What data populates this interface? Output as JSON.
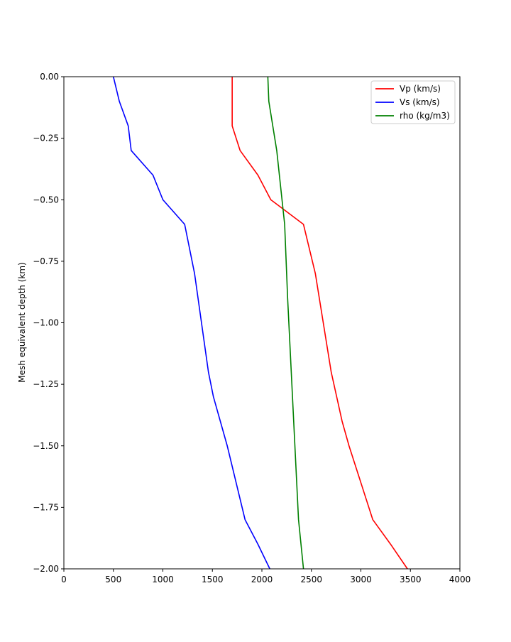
{
  "chart_data": {
    "type": "line",
    "title": "",
    "xlabel": "",
    "ylabel": "Mesh equivalent depth (km)",
    "xlim": [
      0,
      4000
    ],
    "ylim": [
      -2.0,
      0.0
    ],
    "x_ticks": [
      0,
      500,
      1000,
      1500,
      2000,
      2500,
      3000,
      3500,
      4000
    ],
    "y_ticks": [
      0.0,
      -0.25,
      -0.5,
      -0.75,
      -1.0,
      -1.25,
      -1.5,
      -1.75,
      -2.0
    ],
    "x_tick_labels": [
      "0",
      "500",
      "1000",
      "1500",
      "2000",
      "2500",
      "3000",
      "3500",
      "4000"
    ],
    "y_tick_labels": [
      "0.00",
      "−0.25",
      "−0.50",
      "−0.75",
      "−1.00",
      "−1.25",
      "−1.50",
      "−1.75",
      "−2.00"
    ],
    "grid": false,
    "legend_position": "top-right",
    "series": [
      {
        "name": "Vp (km/s)",
        "color": "#ff0000",
        "points": [
          [
            1700,
            0.0
          ],
          [
            1700,
            -0.2
          ],
          [
            1780,
            -0.3
          ],
          [
            1960,
            -0.4
          ],
          [
            2090,
            -0.5
          ],
          [
            2420,
            -0.6
          ],
          [
            2540,
            -0.8
          ],
          [
            2700,
            -1.2
          ],
          [
            2810,
            -1.4
          ],
          [
            2880,
            -1.5
          ],
          [
            3120,
            -1.8
          ],
          [
            3300,
            -1.9
          ],
          [
            3470,
            -2.0
          ]
        ]
      },
      {
        "name": "Vs (km/s)",
        "color": "#0000ff",
        "points": [
          [
            500,
            0.0
          ],
          [
            560,
            -0.1
          ],
          [
            650,
            -0.2
          ],
          [
            680,
            -0.3
          ],
          [
            900,
            -0.4
          ],
          [
            1000,
            -0.5
          ],
          [
            1220,
            -0.6
          ],
          [
            1320,
            -0.8
          ],
          [
            1460,
            -1.2
          ],
          [
            1510,
            -1.3
          ],
          [
            1650,
            -1.5
          ],
          [
            1830,
            -1.8
          ],
          [
            1960,
            -1.9
          ],
          [
            2080,
            -2.0
          ]
        ]
      },
      {
        "name": "rho (kg/m3)",
        "color": "#008000",
        "points": [
          [
            2060,
            0.0
          ],
          [
            2070,
            -0.1
          ],
          [
            2150,
            -0.3
          ],
          [
            2230,
            -0.6
          ],
          [
            2260,
            -0.9
          ],
          [
            2370,
            -1.8
          ],
          [
            2420,
            -2.0
          ]
        ]
      }
    ]
  }
}
